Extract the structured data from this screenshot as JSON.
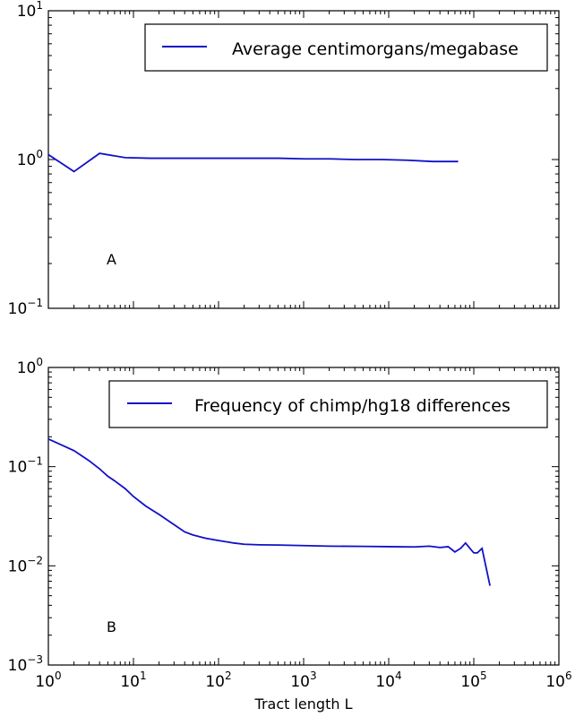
{
  "chart_data": [
    {
      "type": "line",
      "panel_label": "A",
      "xscale": "log",
      "yscale": "log",
      "xlim": [
        1,
        1000000
      ],
      "ylim": [
        0.1,
        10
      ],
      "y_ticks": [
        {
          "value": 0.1,
          "base": "10",
          "exp": "−1"
        },
        {
          "value": 1,
          "base": "10",
          "exp": "0"
        },
        {
          "value": 10,
          "base": "10",
          "exp": "1"
        }
      ],
      "legend_position": "top-right",
      "line_color": "#1010c8",
      "series": [
        {
          "name": "Average centimorgans/megabase",
          "x": [
            1,
            2,
            4,
            8,
            16,
            32,
            64,
            128,
            256,
            512,
            1024,
            2048,
            4096,
            8192,
            16384,
            32768,
            65536
          ],
          "y": [
            1.08,
            0.83,
            1.1,
            1.03,
            1.02,
            1.02,
            1.02,
            1.02,
            1.02,
            1.02,
            1.01,
            1.01,
            1.0,
            1.0,
            0.99,
            0.97,
            0.97
          ]
        }
      ]
    },
    {
      "type": "line",
      "panel_label": "B",
      "xscale": "log",
      "yscale": "log",
      "xlim": [
        1,
        1000000
      ],
      "ylim": [
        0.001,
        1
      ],
      "xlabel": "Tract length L",
      "x_ticks": [
        {
          "value": 1,
          "base": "10",
          "exp": "0"
        },
        {
          "value": 10,
          "base": "10",
          "exp": "1"
        },
        {
          "value": 100,
          "base": "10",
          "exp": "2"
        },
        {
          "value": 1000,
          "base": "10",
          "exp": "3"
        },
        {
          "value": 10000,
          "base": "10",
          "exp": "4"
        },
        {
          "value": 100000,
          "base": "10",
          "exp": "5"
        },
        {
          "value": 1000000,
          "base": "10",
          "exp": "6"
        }
      ],
      "y_ticks": [
        {
          "value": 0.001,
          "base": "10",
          "exp": "−3"
        },
        {
          "value": 0.01,
          "base": "10",
          "exp": "−2"
        },
        {
          "value": 0.1,
          "base": "10",
          "exp": "−1"
        },
        {
          "value": 1,
          "base": "10",
          "exp": "0"
        }
      ],
      "legend_position": "top-right",
      "line_color": "#1010c8",
      "series": [
        {
          "name": "Frequency of chimp/hg18 differences",
          "x": [
            1,
            2,
            3,
            4,
            5,
            6,
            8,
            10,
            14,
            20,
            30,
            40,
            50,
            70,
            100,
            150,
            200,
            300,
            500,
            1000,
            2000,
            5000,
            10000,
            20000,
            30000,
            40000,
            50000,
            60000,
            70000,
            80000,
            90000,
            100000,
            110000,
            125000,
            140000,
            155000
          ],
          "y": [
            0.19,
            0.145,
            0.115,
            0.095,
            0.08,
            0.072,
            0.06,
            0.05,
            0.04,
            0.033,
            0.026,
            0.022,
            0.0205,
            0.019,
            0.018,
            0.017,
            0.0165,
            0.0163,
            0.0162,
            0.016,
            0.0158,
            0.0157,
            0.0156,
            0.0155,
            0.0158,
            0.0153,
            0.0156,
            0.0138,
            0.015,
            0.017,
            0.015,
            0.0135,
            0.0135,
            0.015,
            0.0095,
            0.0063
          ]
        }
      ]
    }
  ]
}
